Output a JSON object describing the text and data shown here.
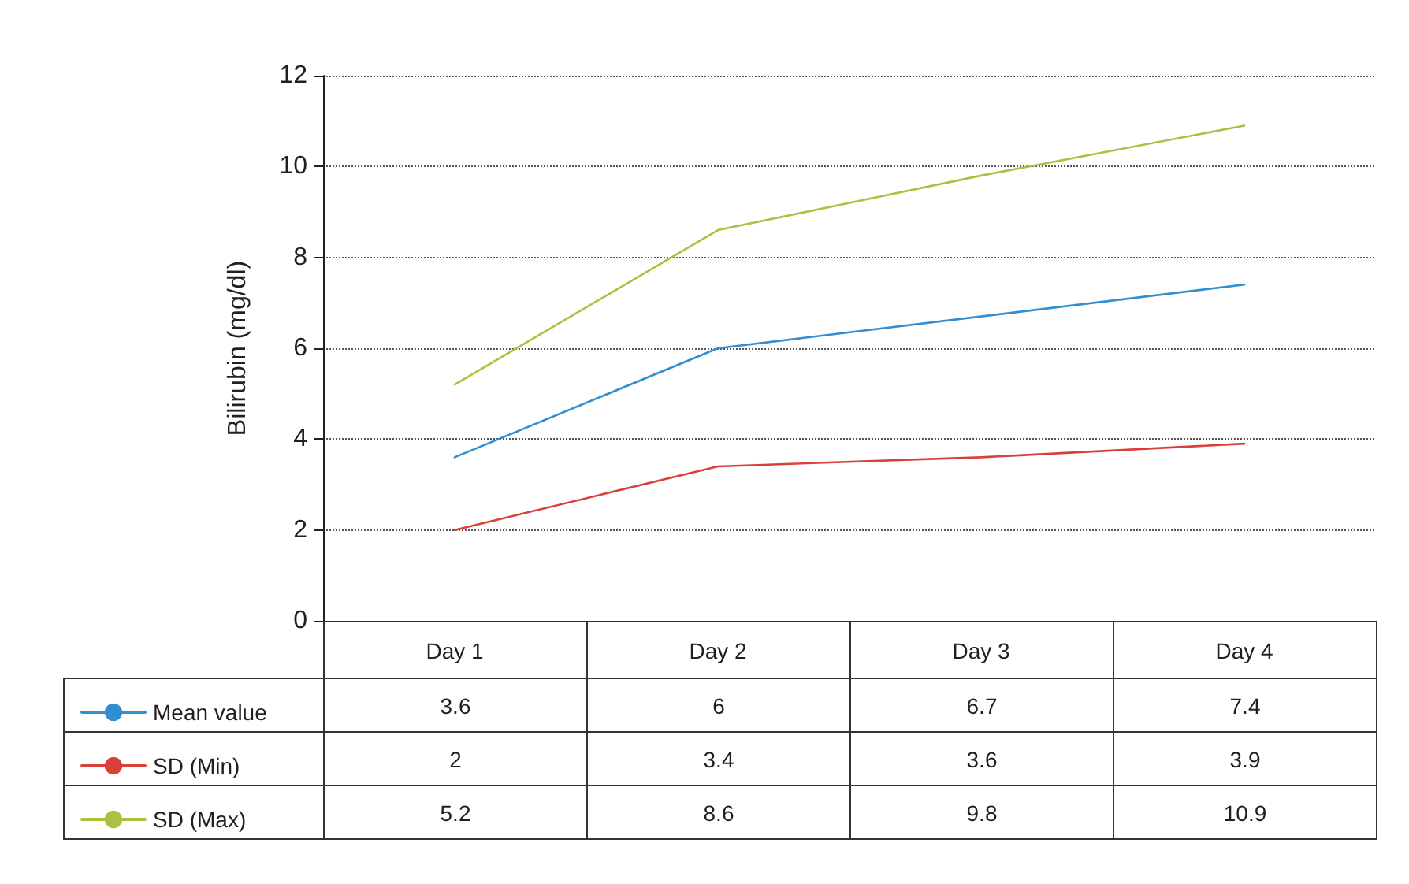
{
  "chart_data": {
    "type": "line",
    "ylabel": "Bilirubin (mg/dl)",
    "categories": [
      "Day 1",
      "Day 2",
      "Day 3",
      "Day 4"
    ],
    "series": [
      {
        "name": "Mean value",
        "color": "#2f8fd0",
        "values": [
          3.6,
          6,
          6.7,
          7.4
        ]
      },
      {
        "name": "SD (Min)",
        "color": "#d9403a",
        "values": [
          2,
          3.4,
          3.6,
          3.9
        ]
      },
      {
        "name": "SD (Max)",
        "color": "#a9c23f",
        "values": [
          5.2,
          8.6,
          9.8,
          10.9
        ]
      }
    ],
    "ylim": [
      0,
      12
    ],
    "yticks": [
      0,
      2,
      4,
      6,
      8,
      10,
      12
    ],
    "grid": "y",
    "legend": "bottom",
    "marker": "none",
    "line_style": "solid",
    "data_labels": true
  }
}
